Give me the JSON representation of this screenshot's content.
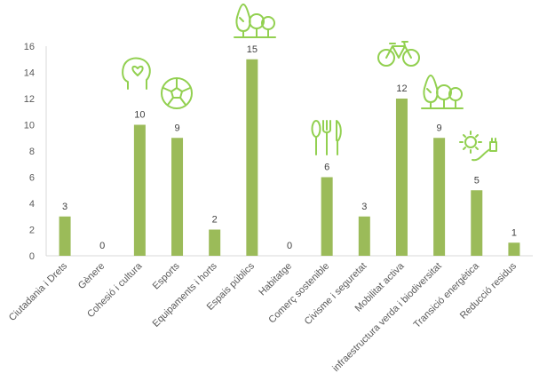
{
  "chart_data": {
    "type": "bar",
    "title": "",
    "xlabel": "",
    "ylabel": "",
    "ylim": [
      0,
      16
    ],
    "yticks": [
      0,
      2,
      4,
      6,
      8,
      10,
      12,
      14,
      16
    ],
    "grid": false,
    "categories": [
      "Ciutadania i Drets",
      "Gènere",
      "Cohesió i cultura",
      "Esports",
      "Equipaments i horts",
      "Espais públics",
      "Habitatge",
      "Comerç sostenible",
      "Civisme i seguretat",
      "Mobilitat activa",
      "infraestructura verda i biodiversitat",
      "Transició energètica",
      "Reducció residus"
    ],
    "values": [
      3,
      0,
      10,
      9,
      2,
      15,
      0,
      6,
      3,
      12,
      9,
      5,
      1
    ],
    "bar_color": "#9bbb59",
    "icon_color": "#92d050"
  },
  "icons": [
    {
      "name": "head-heart-icon",
      "category_index": 2
    },
    {
      "name": "soccer-ball-icon",
      "category_index": 3
    },
    {
      "name": "trees-icon",
      "category_index": 5
    },
    {
      "name": "cutlery-icon",
      "category_index": 7
    },
    {
      "name": "bicycle-icon",
      "category_index": 9
    },
    {
      "name": "trees-icon",
      "category_index": 10
    },
    {
      "name": "sun-plug-icon",
      "category_index": 11
    }
  ]
}
